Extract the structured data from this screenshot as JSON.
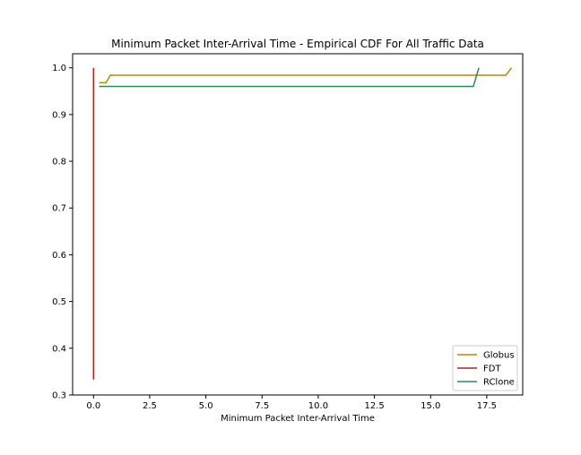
{
  "chart_data": {
    "type": "line",
    "title": "Minimum Packet Inter-Arrival Time - Empirical CDF For All Traffic Data",
    "xlabel": "Minimum Packet Inter-Arrival Time",
    "ylabel": "",
    "xlim": [
      -0.93,
      19.1
    ],
    "ylim": [
      0.3,
      1.03
    ],
    "xticks": [
      0.0,
      2.5,
      5.0,
      7.5,
      10.0,
      12.5,
      15.0,
      17.5
    ],
    "xtick_labels": [
      "0.0",
      "2.5",
      "5.0",
      "7.5",
      "10.0",
      "12.5",
      "15.0",
      "17.5"
    ],
    "yticks": [
      0.3,
      0.4,
      0.5,
      0.6,
      0.7,
      0.8,
      0.9,
      1.0
    ],
    "ytick_labels": [
      "0.3",
      "0.4",
      "0.5",
      "0.6",
      "0.7",
      "0.8",
      "0.9",
      "1.0"
    ],
    "grid": false,
    "legend_position": "bottom-right",
    "series": [
      {
        "name": "Globus",
        "color": "#b8860b",
        "x": [
          0.25,
          0.55,
          0.75,
          18.35,
          18.6
        ],
        "y": [
          0.968,
          0.968,
          0.984,
          0.984,
          1.0
        ]
      },
      {
        "name": "FDT",
        "color": "#b22222",
        "x": [
          0.0,
          0.0
        ],
        "y": [
          0.333,
          1.0
        ]
      },
      {
        "name": "RClone",
        "color": "#2e8b57",
        "x": [
          0.25,
          16.9,
          17.15
        ],
        "y": [
          0.96,
          0.96,
          1.0
        ]
      }
    ]
  }
}
